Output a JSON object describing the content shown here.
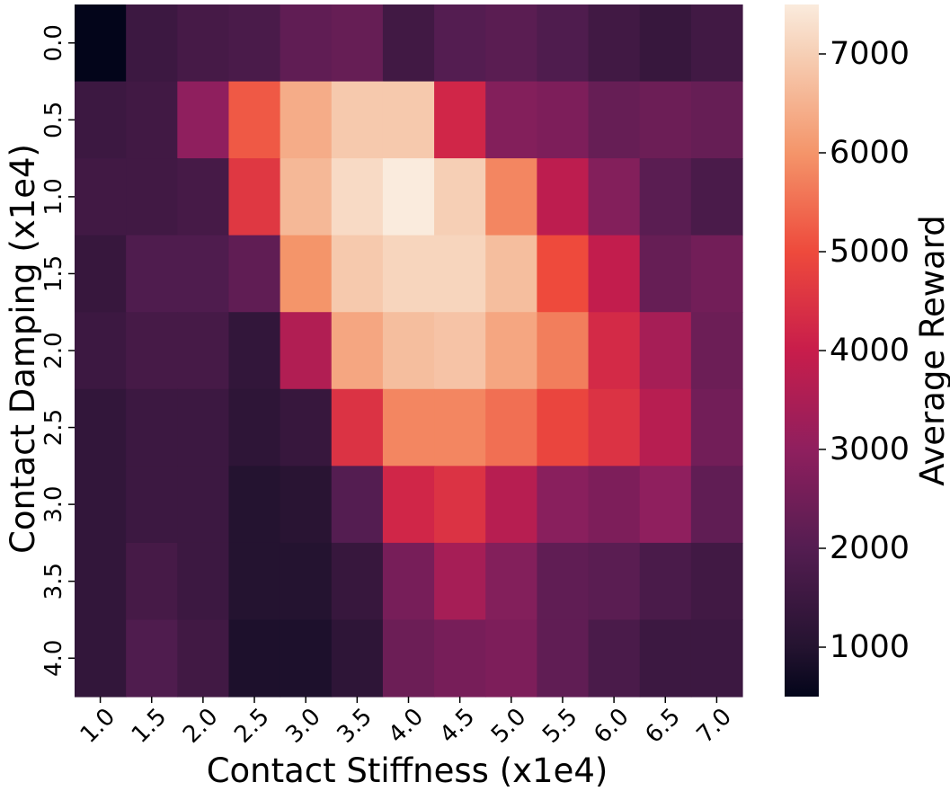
{
  "chart_data": {
    "type": "heatmap",
    "title": "",
    "xlabel": "Contact Stiffness (x1e4)",
    "ylabel": "Contact Damping (x1e4)",
    "x_categories": [
      "1.0",
      "1.5",
      "2.0",
      "2.5",
      "3.0",
      "3.5",
      "4.0",
      "4.5",
      "5.0",
      "5.5",
      "6.0",
      "6.5",
      "7.0"
    ],
    "y_categories": [
      "0.0",
      "0.5",
      "1.0",
      "1.5",
      "2.0",
      "2.5",
      "3.0",
      "3.5",
      "4.0"
    ],
    "values": [
      [
        500,
        1500,
        1700,
        1800,
        2200,
        2300,
        1600,
        2000,
        2100,
        1900,
        1600,
        1400,
        1600
      ],
      [
        1500,
        1600,
        3000,
        5200,
        6400,
        6900,
        6900,
        4200,
        2800,
        2700,
        2300,
        2400,
        2300
      ],
      [
        1600,
        1600,
        1700,
        4600,
        6600,
        7200,
        7500,
        7000,
        5800,
        3800,
        2800,
        2100,
        1800
      ],
      [
        1400,
        1900,
        1900,
        2200,
        6000,
        6900,
        7100,
        7100,
        6700,
        5000,
        3900,
        2300,
        2500
      ],
      [
        1500,
        1700,
        1700,
        1300,
        3600,
        6300,
        6700,
        6800,
        6300,
        5700,
        4300,
        3400,
        2400
      ],
      [
        1300,
        1500,
        1500,
        1200,
        1400,
        4500,
        5800,
        5800,
        5500,
        4900,
        4500,
        3700,
        2500
      ],
      [
        1300,
        1500,
        1500,
        1000,
        1100,
        2000,
        4200,
        4500,
        3700,
        2900,
        2700,
        3000,
        2200
      ],
      [
        1300,
        1700,
        1500,
        1000,
        1000,
        1400,
        2600,
        3400,
        2800,
        2200,
        2100,
        1800,
        1600
      ],
      [
        1300,
        1900,
        1600,
        900,
        900,
        1200,
        2400,
        2600,
        2700,
        2200,
        1800,
        1500,
        1500
      ]
    ],
    "vmin": 500,
    "vmax": 7500,
    "colormap": "rocket",
    "colorbar": {
      "label": "Average Reward",
      "ticks": [
        1000,
        2000,
        3000,
        4000,
        5000,
        6000,
        7000
      ]
    }
  }
}
